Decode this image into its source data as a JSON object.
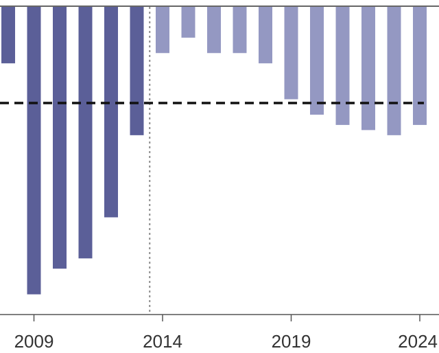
{
  "chart_data": {
    "type": "bar",
    "categories": [
      "2008",
      "2009",
      "2010",
      "2011",
      "2012",
      "2013",
      "2014",
      "2015",
      "2016",
      "2017",
      "2018",
      "2019",
      "2020",
      "2021",
      "2022",
      "2023",
      "2024"
    ],
    "values": [
      0.8,
      -3.7,
      -3.2,
      -3.0,
      -2.2,
      -0.6,
      1.0,
      1.3,
      1.0,
      1.0,
      0.8,
      0.1,
      -0.2,
      -0.4,
      -0.5,
      -0.6,
      -0.4
    ],
    "projected_from": "2014",
    "reference_line": 0,
    "ylim": [
      -4.0,
      1.9
    ],
    "x_tick_labels": [
      "2009",
      "2014",
      "2019",
      "2024"
    ],
    "title": "",
    "xlabel": "",
    "ylabel": "",
    "colors": {
      "actual": "#5b5f98",
      "projected": "#9498c2",
      "reference_line": "#111111",
      "divider": "#8a8a8a",
      "axis": "#555555"
    }
  }
}
